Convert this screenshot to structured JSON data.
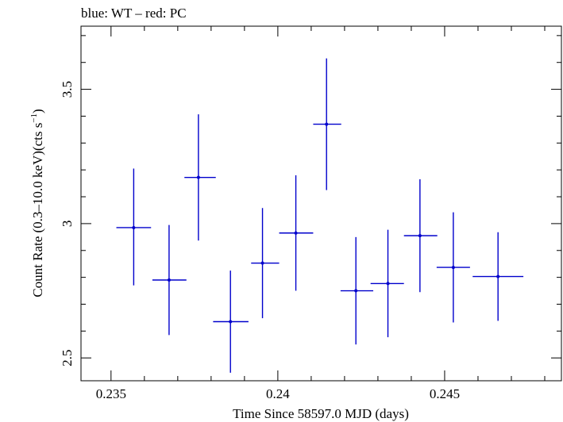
{
  "chart_data": {
    "type": "scatter",
    "title": "blue: WT – red: PC",
    "xlabel": "Time Since 58597.0 MJD (days)",
    "ylabel_main": "Count Rate (0.3–10.0 keV)(cts s",
    "ylabel_sup": "−1",
    "ylabel_close": ")",
    "xlim": [
      0.2341,
      0.2485
    ],
    "ylim": [
      2.415,
      3.735
    ],
    "x_ticks": [
      {
        "value": 0.235,
        "label": "0.235"
      },
      {
        "value": 0.24,
        "label": "0.24"
      },
      {
        "value": 0.245,
        "label": "0.245"
      }
    ],
    "y_ticks": [
      {
        "value": 2.5,
        "label": "2.5"
      },
      {
        "value": 3.0,
        "label": "3"
      },
      {
        "value": 3.5,
        "label": "3.5"
      }
    ],
    "grid": false,
    "series": [
      {
        "color": "#0000cc",
        "points": [
          {
            "x": 0.23568,
            "xerr_lo": 0.00052,
            "xerr_hi": 0.00052,
            "y": 2.985,
            "yerr_lo": 0.215,
            "yerr_hi": 0.22
          },
          {
            "x": 0.23674,
            "xerr_lo": 0.0005,
            "xerr_hi": 0.00052,
            "y": 2.79,
            "yerr_lo": 0.205,
            "yerr_hi": 0.205
          },
          {
            "x": 0.23762,
            "xerr_lo": 0.00042,
            "xerr_hi": 0.00052,
            "y": 3.172,
            "yerr_lo": 0.235,
            "yerr_hi": 0.235
          },
          {
            "x": 0.23858,
            "xerr_lo": 0.00052,
            "xerr_hi": 0.00054,
            "y": 2.635,
            "yerr_lo": 0.19,
            "yerr_hi": 0.19
          },
          {
            "x": 0.23954,
            "xerr_lo": 0.00034,
            "xerr_hi": 0.0005,
            "y": 2.853,
            "yerr_lo": 0.205,
            "yerr_hi": 0.205
          },
          {
            "x": 0.24054,
            "xerr_lo": 0.0005,
            "xerr_hi": 0.00052,
            "y": 2.965,
            "yerr_lo": 0.215,
            "yerr_hi": 0.215
          },
          {
            "x": 0.24146,
            "xerr_lo": 0.0004,
            "xerr_hi": 0.00044,
            "y": 3.37,
            "yerr_lo": 0.245,
            "yerr_hi": 0.245
          },
          {
            "x": 0.24234,
            "xerr_lo": 0.00046,
            "xerr_hi": 0.00052,
            "y": 2.75,
            "yerr_lo": 0.2,
            "yerr_hi": 0.2
          },
          {
            "x": 0.2433,
            "xerr_lo": 0.00052,
            "xerr_hi": 0.00048,
            "y": 2.777,
            "yerr_lo": 0.2,
            "yerr_hi": 0.2
          },
          {
            "x": 0.24426,
            "xerr_lo": 0.00048,
            "xerr_hi": 0.00052,
            "y": 2.955,
            "yerr_lo": 0.21,
            "yerr_hi": 0.21
          },
          {
            "x": 0.24526,
            "xerr_lo": 0.0005,
            "xerr_hi": 0.0005,
            "y": 2.837,
            "yerr_lo": 0.205,
            "yerr_hi": 0.205
          },
          {
            "x": 0.2466,
            "xerr_lo": 0.00076,
            "xerr_hi": 0.00076,
            "y": 2.803,
            "yerr_lo": 0.165,
            "yerr_hi": 0.165
          }
        ]
      }
    ]
  }
}
